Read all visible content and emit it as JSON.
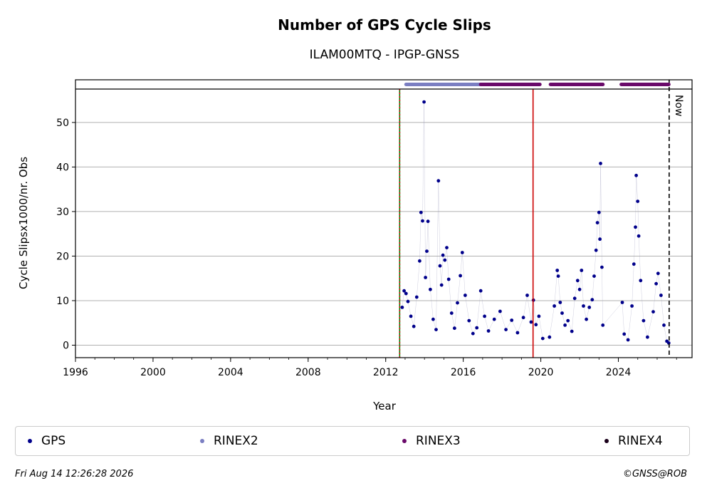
{
  "chart_data": {
    "type": "scatter",
    "title": "Number of GPS Cycle Slips",
    "subtitle": "ILAM00MTQ - IPGP-GNSS",
    "xlabel": "Year",
    "ylabel": "Cycle Slipsx1000/nr. Obs",
    "xlim": [
      1996,
      2027.8
    ],
    "ylim": [
      -2.8,
      57.5
    ],
    "xticks": [
      1996,
      2000,
      2004,
      2008,
      2012,
      2016,
      2020,
      2024
    ],
    "xtick_labels": [
      "1996",
      "2000",
      "2004",
      "2008",
      "2012",
      "2016",
      "2020",
      "2024"
    ],
    "yticks": [
      0,
      10,
      20,
      30,
      40,
      50
    ],
    "ytick_labels": [
      "0",
      "10",
      "20",
      "30",
      "40",
      "50"
    ],
    "grid": "horizontal",
    "series": [
      {
        "name": "GPS",
        "color": "#00008b",
        "points": [
          [
            2012.85,
            8.5
          ],
          [
            2012.95,
            12.2
          ],
          [
            2013.05,
            11.6
          ],
          [
            2013.15,
            9.8
          ],
          [
            2013.3,
            6.5
          ],
          [
            2013.45,
            4.2
          ],
          [
            2013.6,
            10.8
          ],
          [
            2013.75,
            18.9
          ],
          [
            2013.82,
            29.8
          ],
          [
            2013.9,
            27.9
          ],
          [
            2013.98,
            54.6
          ],
          [
            2014.05,
            15.2
          ],
          [
            2014.12,
            21.1
          ],
          [
            2014.18,
            27.8
          ],
          [
            2014.3,
            12.5
          ],
          [
            2014.45,
            5.8
          ],
          [
            2014.6,
            3.5
          ],
          [
            2014.72,
            36.9
          ],
          [
            2014.8,
            17.8
          ],
          [
            2014.88,
            13.5
          ],
          [
            2014.95,
            20.2
          ],
          [
            2015.05,
            19.1
          ],
          [
            2015.15,
            21.9
          ],
          [
            2015.25,
            14.8
          ],
          [
            2015.4,
            7.2
          ],
          [
            2015.55,
            3.8
          ],
          [
            2015.7,
            9.5
          ],
          [
            2015.85,
            15.6
          ],
          [
            2015.95,
            20.8
          ],
          [
            2016.1,
            11.2
          ],
          [
            2016.3,
            5.5
          ],
          [
            2016.5,
            2.6
          ],
          [
            2016.7,
            3.9
          ],
          [
            2016.9,
            12.2
          ],
          [
            2017.1,
            6.5
          ],
          [
            2017.3,
            3.2
          ],
          [
            2017.6,
            5.8
          ],
          [
            2017.9,
            7.6
          ],
          [
            2018.2,
            3.5
          ],
          [
            2018.5,
            5.6
          ],
          [
            2018.8,
            2.8
          ],
          [
            2019.1,
            6.2
          ],
          [
            2019.3,
            11.2
          ],
          [
            2019.5,
            5.2
          ],
          [
            2019.62,
            10.1
          ],
          [
            2019.75,
            4.6
          ],
          [
            2019.9,
            6.5
          ],
          [
            2020.1,
            1.5
          ],
          [
            2020.45,
            1.8
          ],
          [
            2020.7,
            8.8
          ],
          [
            2020.85,
            16.8
          ],
          [
            2020.9,
            15.5
          ],
          [
            2021.0,
            9.6
          ],
          [
            2021.1,
            7.2
          ],
          [
            2021.25,
            4.5
          ],
          [
            2021.4,
            5.5
          ],
          [
            2021.6,
            3.1
          ],
          [
            2021.75,
            10.5
          ],
          [
            2021.9,
            14.5
          ],
          [
            2022.0,
            12.5
          ],
          [
            2022.1,
            16.8
          ],
          [
            2022.2,
            8.8
          ],
          [
            2022.35,
            5.8
          ],
          [
            2022.5,
            8.5
          ],
          [
            2022.65,
            10.2
          ],
          [
            2022.75,
            15.5
          ],
          [
            2022.85,
            21.3
          ],
          [
            2022.92,
            27.5
          ],
          [
            2023.0,
            29.8
          ],
          [
            2023.05,
            23.8
          ],
          [
            2023.08,
            40.8
          ],
          [
            2023.15,
            17.5
          ],
          [
            2023.2,
            4.5
          ],
          [
            2024.2,
            9.6
          ],
          [
            2024.3,
            2.5
          ],
          [
            2024.5,
            1.2
          ],
          [
            2024.7,
            8.8
          ],
          [
            2024.8,
            18.2
          ],
          [
            2024.88,
            26.5
          ],
          [
            2024.92,
            38.1
          ],
          [
            2025.0,
            32.3
          ],
          [
            2025.05,
            24.5
          ],
          [
            2025.15,
            14.5
          ],
          [
            2025.3,
            5.5
          ],
          [
            2025.5,
            1.8
          ],
          [
            2025.8,
            7.5
          ],
          [
            2025.95,
            13.8
          ],
          [
            2026.05,
            16.1
          ],
          [
            2026.2,
            11.2
          ],
          [
            2026.35,
            4.5
          ],
          [
            2026.5,
            0.9
          ],
          [
            2026.6,
            0.5
          ]
        ]
      },
      {
        "name": "RINEX2",
        "color": "#7b7fc2",
        "intervals": [
          [
            2013.05,
            2016.9
          ]
        ]
      },
      {
        "name": "RINEX3",
        "color": "#6a0a6a",
        "intervals": [
          [
            2016.9,
            2019.95
          ],
          [
            2020.5,
            2023.2
          ],
          [
            2024.15,
            2026.6
          ]
        ]
      },
      {
        "name": "RINEX4",
        "color": "#1a001a",
        "intervals": []
      }
    ],
    "vlines": [
      {
        "x": 2012.72,
        "color": "#008000",
        "style": "solid"
      },
      {
        "x": 2012.72,
        "color": "#cc0000",
        "style": "dotted"
      },
      {
        "x": 2019.6,
        "color": "#cc0000",
        "style": "solid"
      },
      {
        "x": 2026.62,
        "color": "#000000",
        "style": "dashed",
        "label": "Now"
      }
    ],
    "legend_placement": "bottom"
  },
  "legend": [
    {
      "label": "GPS",
      "color": "#00008b"
    },
    {
      "label": "RINEX2",
      "color": "#7b7fc2"
    },
    {
      "label": "RINEX3",
      "color": "#6a0a6a"
    },
    {
      "label": "RINEX4",
      "color": "#1a001a"
    }
  ],
  "footer": {
    "timestamp": "Fri Aug 14 12:26:28 2026",
    "copyright": "©GNSS@ROB"
  }
}
